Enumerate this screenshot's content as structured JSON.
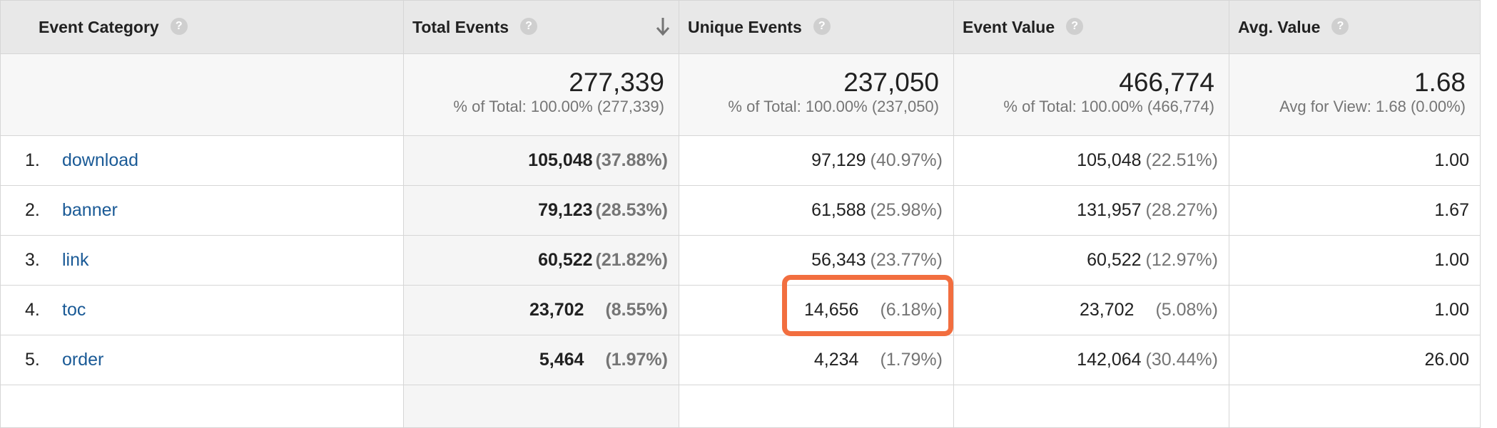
{
  "columns": [
    {
      "label": "Event Category",
      "help": "?"
    },
    {
      "label": "Total Events",
      "help": "?"
    },
    {
      "label": "Unique Events",
      "help": "?"
    },
    {
      "label": "Event Value",
      "help": "?"
    },
    {
      "label": "Avg. Value",
      "help": "?"
    }
  ],
  "sort": {
    "column": "Total Events",
    "direction": "descending",
    "icon": "arrow-down-icon"
  },
  "totals": {
    "total_events": {
      "value": "277,339",
      "sub": "% of Total: 100.00% (277,339)"
    },
    "unique_events": {
      "value": "237,050",
      "sub": "% of Total: 100.00% (237,050)"
    },
    "event_value": {
      "value": "466,774",
      "sub": "% of Total: 100.00% (466,774)"
    },
    "avg_value": {
      "value": "1.68",
      "sub": "Avg for View: 1.68 (0.00%)"
    }
  },
  "rows": [
    {
      "index": "1.",
      "category": "download",
      "total": "105,048",
      "total_pct": "(37.88%)",
      "unique": "97,129",
      "unique_pct": "(40.97%)",
      "value": "105,048",
      "value_pct": "(22.51%)",
      "avg": "1.00"
    },
    {
      "index": "2.",
      "category": "banner",
      "total": "79,123",
      "total_pct": "(28.53%)",
      "unique": "61,588",
      "unique_pct": "(25.98%)",
      "value": "131,957",
      "value_pct": "(28.27%)",
      "avg": "1.67"
    },
    {
      "index": "3.",
      "category": "link",
      "total": "60,522",
      "total_pct": "(21.82%)",
      "unique": "56,343",
      "unique_pct": "(23.77%)",
      "value": "60,522",
      "value_pct": "(12.97%)",
      "avg": "1.00"
    },
    {
      "index": "4.",
      "category": "toc",
      "total": "23,702",
      "total_pct": "(8.55%)",
      "unique": "14,656",
      "unique_pct": "(6.18%)",
      "value": "23,702",
      "value_pct": "(5.08%)",
      "avg": "1.00"
    },
    {
      "index": "5.",
      "category": "order",
      "total": "5,464",
      "total_pct": "(1.97%)",
      "unique": "4,234",
      "unique_pct": "(1.79%)",
      "value": "142,064",
      "value_pct": "(30.44%)",
      "avg": "26.00"
    }
  ],
  "highlight": {
    "row": "toc",
    "column": "Unique Events",
    "color": "#f26e3f"
  },
  "colors": {
    "link": "#1a5a96",
    "header_bg": "#e8e8e8",
    "sorted_column_bg": "#f5f5f5"
  }
}
